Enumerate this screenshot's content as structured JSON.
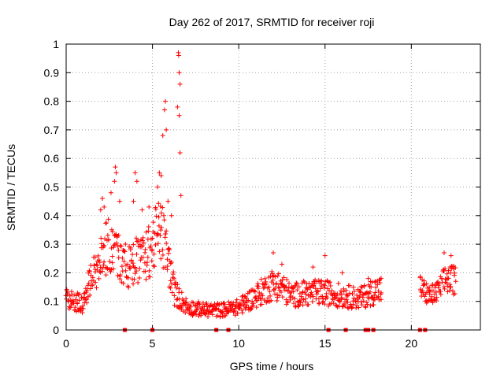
{
  "chart_data": {
    "type": "scatter",
    "title": "Day 262 of 2017, SRMTID for receiver roji",
    "xlabel": "GPS time / hours",
    "ylabel": "SRMTID / TECUs",
    "xlim": [
      0,
      24
    ],
    "ylim": [
      0,
      1
    ],
    "xticks": [
      0,
      5,
      10,
      15,
      20
    ],
    "xtick_labels": [
      "0",
      "5",
      "10",
      "15",
      "20"
    ],
    "yticks": [
      0,
      0.1,
      0.2,
      0.3,
      0.4,
      0.5,
      0.6,
      0.7,
      0.8,
      0.9,
      1
    ],
    "ytick_labels": [
      "0",
      "0.1",
      "0.2",
      "0.3",
      "0.4",
      "0.5",
      "0.6",
      "0.7",
      "0.8",
      "0.9",
      "1"
    ],
    "grid": true,
    "marker": "+",
    "color": "#ff0000",
    "series": [
      {
        "name": "SRMTID",
        "profile": [
          [
            0.0,
            0.11
          ],
          [
            0.5,
            0.1
          ],
          [
            1.0,
            0.09
          ],
          [
            1.5,
            0.2
          ],
          [
            2.0,
            0.25
          ],
          [
            2.5,
            0.3
          ],
          [
            3.0,
            0.26
          ],
          [
            3.5,
            0.22
          ],
          [
            4.0,
            0.25
          ],
          [
            4.5,
            0.24
          ],
          [
            5.0,
            0.3
          ],
          [
            5.5,
            0.35
          ],
          [
            6.0,
            0.22
          ],
          [
            6.3,
            0.13
          ],
          [
            7.0,
            0.08
          ],
          [
            8.0,
            0.07
          ],
          [
            9.0,
            0.07
          ],
          [
            10.0,
            0.08
          ],
          [
            11.0,
            0.12
          ],
          [
            12.0,
            0.16
          ],
          [
            12.5,
            0.15
          ],
          [
            13.0,
            0.12
          ],
          [
            14.0,
            0.13
          ],
          [
            15.0,
            0.13
          ],
          [
            16.0,
            0.12
          ],
          [
            17.0,
            0.11
          ],
          [
            18.0,
            0.14
          ],
          [
            18.3,
            0.14
          ]
        ],
        "gap": [
          18.3,
          20.5
        ],
        "profile_late": [
          [
            20.5,
            0.15
          ],
          [
            21.0,
            0.12
          ],
          [
            21.5,
            0.13
          ],
          [
            22.0,
            0.18
          ],
          [
            22.6,
            0.17
          ]
        ],
        "outliers": [
          [
            2.0,
            0.42
          ],
          [
            2.1,
            0.46
          ],
          [
            2.2,
            0.43
          ],
          [
            2.6,
            0.48
          ],
          [
            2.8,
            0.52
          ],
          [
            2.85,
            0.57
          ],
          [
            2.9,
            0.55
          ],
          [
            3.1,
            0.45
          ],
          [
            3.9,
            0.45
          ],
          [
            4.0,
            0.55
          ],
          [
            4.1,
            0.52
          ],
          [
            4.4,
            0.42
          ],
          [
            4.8,
            0.43
          ],
          [
            5.3,
            0.5
          ],
          [
            5.4,
            0.55
          ],
          [
            5.5,
            0.54
          ],
          [
            5.6,
            0.68
          ],
          [
            5.7,
            0.77
          ],
          [
            5.75,
            0.8
          ],
          [
            5.8,
            0.7
          ],
          [
            5.9,
            0.45
          ],
          [
            6.1,
            0.4
          ],
          [
            6.5,
            0.97
          ],
          [
            6.52,
            0.96
          ],
          [
            6.55,
            0.9
          ],
          [
            6.6,
            0.86
          ],
          [
            6.45,
            0.78
          ],
          [
            6.55,
            0.75
          ],
          [
            6.6,
            0.62
          ],
          [
            6.65,
            0.47
          ],
          [
            12.0,
            0.27
          ],
          [
            12.5,
            0.23
          ],
          [
            14.3,
            0.22
          ],
          [
            15.0,
            0.26
          ],
          [
            16.0,
            0.2
          ],
          [
            17.5,
            0.18
          ],
          [
            21.9,
            0.27
          ],
          [
            22.3,
            0.26
          ]
        ]
      }
    ],
    "zero_markers_x": [
      3.4,
      5.0,
      8.7,
      9.4,
      15.2,
      16.2,
      17.35,
      17.5,
      17.8,
      20.5,
      20.8
    ]
  }
}
